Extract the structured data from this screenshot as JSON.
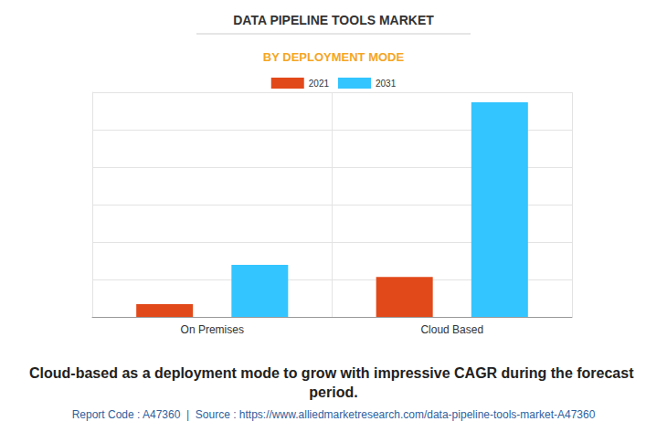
{
  "chart_data": {
    "type": "bar",
    "title": "DATA PIPELINE TOOLS MARKET",
    "subtitle": "BY DEPLOYMENT MODE",
    "categories": [
      "On Premises",
      "Cloud Based"
    ],
    "series": [
      {
        "name": "2021",
        "color": "#e2491a",
        "values": [
          0.34,
          1.07
        ]
      },
      {
        "name": "2031",
        "color": "#33c5ff",
        "values": [
          1.39,
          5.73
        ]
      }
    ],
    "ylim": [
      0,
      6
    ],
    "yticks": [
      0,
      1,
      2,
      3,
      4,
      5,
      6
    ],
    "grid": true,
    "legend": "top",
    "tick_labels": "x",
    "annotations": [
      "Cloud-based as a deployment mode to grow with impressive CAGR during the forecast period.",
      "Report Code : A47360  |  Source : https://www.alliedmarketresearch.com/data-pipeline-tools-market-A47360"
    ]
  }
}
